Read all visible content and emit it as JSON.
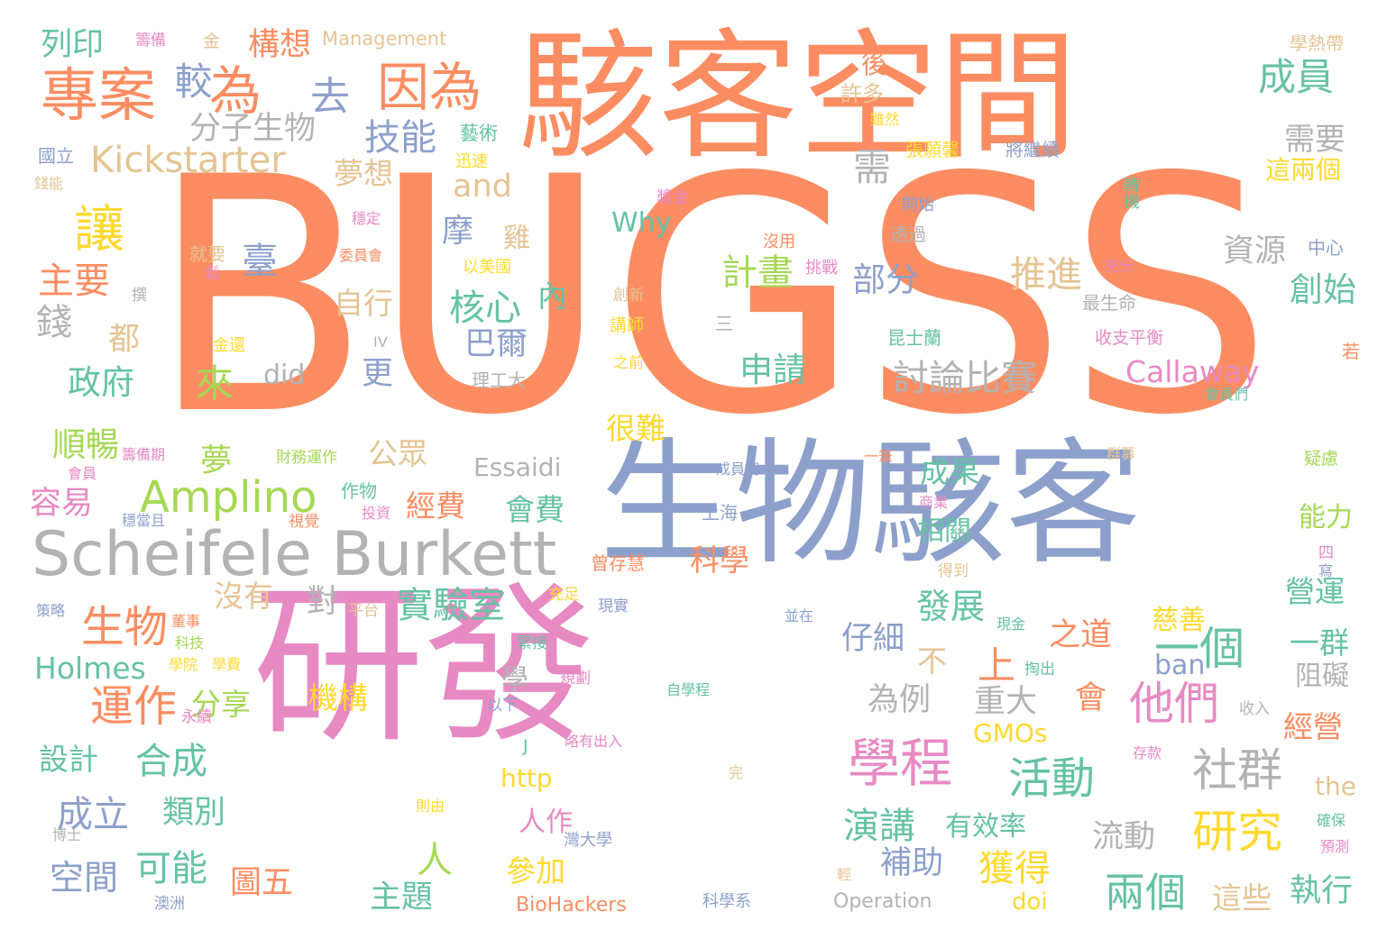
{
  "palette": {
    "orange": "#fc8d62",
    "blue": "#8da0cb",
    "pink": "#e78ac3",
    "green": "#66c2a5",
    "lime": "#a6d854",
    "yellow": "#ffd92f",
    "tan": "#e5c494",
    "gray": "#b3b3b3",
    "background": "#ffffff"
  },
  "words": [
    {
      "text": "BUGSS",
      "color": "orange"
    },
    {
      "text": "研發",
      "color": "pink"
    },
    {
      "text": "駭客空間",
      "color": "orange"
    },
    {
      "text": "生物駭客",
      "color": "blue"
    },
    {
      "text": "Scheifele Burkett",
      "color": "gray"
    },
    {
      "text": "專案",
      "color": "orange"
    },
    {
      "text": "為",
      "color": "orange"
    },
    {
      "text": "因為",
      "color": "orange"
    },
    {
      "text": "去",
      "color": "blue"
    },
    {
      "text": "較",
      "color": "blue"
    },
    {
      "text": "構想",
      "color": "orange"
    },
    {
      "text": "Management",
      "color": "tan"
    },
    {
      "text": "列印",
      "color": "green"
    },
    {
      "text": "籌備",
      "color": "pink"
    },
    {
      "text": "金",
      "color": "tan"
    },
    {
      "text": "分子生物",
      "color": "gray"
    },
    {
      "text": "技能",
      "color": "blue"
    },
    {
      "text": "Kickstarter",
      "color": "tan"
    },
    {
      "text": "國立",
      "color": "blue"
    },
    {
      "text": "錢能",
      "color": "tan"
    },
    {
      "text": "藝術",
      "color": "green"
    },
    {
      "text": "迅速",
      "color": "yellow"
    },
    {
      "text": "夢想",
      "color": "tan"
    },
    {
      "text": "and",
      "color": "tan"
    },
    {
      "text": "需",
      "color": "gray"
    },
    {
      "text": "許多",
      "color": "tan"
    },
    {
      "text": "後",
      "color": "orange"
    },
    {
      "text": "雖然",
      "color": "yellow"
    },
    {
      "text": "張願馨",
      "color": "yellow"
    },
    {
      "text": "將繼續",
      "color": "blue"
    },
    {
      "text": "成員",
      "color": "green"
    },
    {
      "text": "需要",
      "color": "gray"
    },
    {
      "text": "這兩個",
      "color": "yellow"
    },
    {
      "text": "學熱帶",
      "color": "tan"
    },
    {
      "text": "轉機",
      "color": "green"
    },
    {
      "text": "讓",
      "color": "yellow"
    },
    {
      "text": "主要",
      "color": "orange"
    },
    {
      "text": "錢",
      "color": "gray"
    },
    {
      "text": "都",
      "color": "tan"
    },
    {
      "text": "政府",
      "color": "green"
    },
    {
      "text": "臺",
      "color": "blue"
    },
    {
      "text": "摩",
      "color": "blue"
    },
    {
      "text": "雞",
      "color": "tan"
    },
    {
      "text": "Why",
      "color": "green"
    },
    {
      "text": "獎金",
      "color": "pink"
    },
    {
      "text": "穩定",
      "color": "pink"
    },
    {
      "text": "就要",
      "color": "tan"
    },
    {
      "text": "鬆",
      "color": "pink"
    },
    {
      "text": "委員會",
      "color": "orange"
    },
    {
      "text": "以美國",
      "color": "yellow"
    },
    {
      "text": "撰",
      "color": "gray"
    },
    {
      "text": "自行",
      "color": "tan"
    },
    {
      "text": "核心",
      "color": "green"
    },
    {
      "text": "巴爾",
      "color": "blue"
    },
    {
      "text": "內",
      "color": "green"
    },
    {
      "text": "計畫",
      "color": "lime"
    },
    {
      "text": "部分",
      "color": "blue"
    },
    {
      "text": "推進",
      "color": "tan"
    },
    {
      "text": "資源",
      "color": "gray"
    },
    {
      "text": "創始",
      "color": "green"
    },
    {
      "text": "中心",
      "color": "blue"
    },
    {
      "text": "開始",
      "color": "blue"
    },
    {
      "text": "透過",
      "color": "gray"
    },
    {
      "text": "沒用",
      "color": "orange"
    },
    {
      "text": "挑戰",
      "color": "pink"
    },
    {
      "text": "充分",
      "color": "pink"
    },
    {
      "text": "最生命",
      "color": "gray"
    },
    {
      "text": "創新",
      "color": "tan"
    },
    {
      "text": "講師",
      "color": "yellow"
    },
    {
      "text": "三",
      "color": "gray"
    },
    {
      "text": "之前",
      "color": "yellow"
    },
    {
      "text": "金還",
      "color": "yellow"
    },
    {
      "text": "IV",
      "color": "gray"
    },
    {
      "text": "昆士蘭",
      "color": "green"
    },
    {
      "text": "收支平衡",
      "color": "pink"
    },
    {
      "text": "若",
      "color": "orange"
    },
    {
      "text": "來",
      "color": "lime"
    },
    {
      "text": "did",
      "color": "gray"
    },
    {
      "text": "更",
      "color": "blue"
    },
    {
      "text": "理工大",
      "color": "gray"
    },
    {
      "text": "申請",
      "color": "green"
    },
    {
      "text": "討論比賽",
      "color": "gray"
    },
    {
      "text": "Callaway",
      "color": "pink"
    },
    {
      "text": "會員們",
      "color": "green"
    },
    {
      "text": "順暢",
      "color": "lime"
    },
    {
      "text": "籌備期",
      "color": "pink"
    },
    {
      "text": "會員",
      "color": "pink"
    },
    {
      "text": "容易",
      "color": "pink"
    },
    {
      "text": "夢",
      "color": "lime"
    },
    {
      "text": "財務運作",
      "color": "lime"
    },
    {
      "text": "公眾",
      "color": "tan"
    },
    {
      "text": "Essaidi",
      "color": "gray"
    },
    {
      "text": "很難",
      "color": "yellow"
    },
    {
      "text": "成員們",
      "color": "blue"
    },
    {
      "text": "一筆",
      "color": "orange"
    },
    {
      "text": "群募",
      "color": "tan"
    },
    {
      "text": "疑慮",
      "color": "lime"
    },
    {
      "text": "Amplino",
      "color": "lime"
    },
    {
      "text": "經費",
      "color": "orange"
    },
    {
      "text": "會費",
      "color": "green"
    },
    {
      "text": "成果",
      "color": "green"
    },
    {
      "text": "作物",
      "color": "green"
    },
    {
      "text": "穩當且",
      "color": "blue"
    },
    {
      "text": "視覺",
      "color": "orange"
    },
    {
      "text": "投資",
      "color": "pink"
    },
    {
      "text": "上海",
      "color": "blue"
    },
    {
      "text": "商業",
      "color": "pink"
    },
    {
      "text": "能力",
      "color": "lime"
    },
    {
      "text": "相關",
      "color": "green"
    },
    {
      "text": "曾存慧",
      "color": "orange"
    },
    {
      "text": "科學",
      "color": "orange"
    },
    {
      "text": "得到",
      "color": "tan"
    },
    {
      "text": "四",
      "color": "pink"
    },
    {
      "text": "寫",
      "color": "blue"
    },
    {
      "text": "營運",
      "color": "green"
    },
    {
      "text": "生物",
      "color": "orange"
    },
    {
      "text": "沒有",
      "color": "tan"
    },
    {
      "text": "對",
      "color": "gray"
    },
    {
      "text": "實驗室",
      "color": "green"
    },
    {
      "text": "平台",
      "color": "tan"
    },
    {
      "text": "充足",
      "color": "yellow"
    },
    {
      "text": "現實",
      "color": "blue"
    },
    {
      "text": "策略",
      "color": "blue"
    },
    {
      "text": "董事",
      "color": "orange"
    },
    {
      "text": "科技",
      "color": "lime"
    },
    {
      "text": "發展",
      "color": "green"
    },
    {
      "text": "並在",
      "color": "blue"
    },
    {
      "text": "現金",
      "color": "green"
    },
    {
      "text": "慈善",
      "color": "yellow"
    },
    {
      "text": "一個",
      "color": "green"
    },
    {
      "text": "一群",
      "color": "green"
    },
    {
      "text": "仔細",
      "color": "blue"
    },
    {
      "text": "之道",
      "color": "orange"
    },
    {
      "text": "上",
      "color": "orange"
    },
    {
      "text": "不",
      "color": "tan"
    },
    {
      "text": "Holmes",
      "color": "green"
    },
    {
      "text": "學院",
      "color": "yellow"
    },
    {
      "text": "學費",
      "color": "yellow"
    },
    {
      "text": "緊接",
      "color": "green"
    },
    {
      "text": "規劃",
      "color": "pink"
    },
    {
      "text": "學",
      "color": "gray"
    },
    {
      "text": "掏出",
      "color": "green"
    },
    {
      "text": "ban",
      "color": "blue"
    },
    {
      "text": "阻礙",
      "color": "gray"
    },
    {
      "text": "運作",
      "color": "orange"
    },
    {
      "text": "分享",
      "color": "lime"
    },
    {
      "text": "機構",
      "color": "yellow"
    },
    {
      "text": "為例",
      "color": "gray"
    },
    {
      "text": "重大",
      "color": "gray"
    },
    {
      "text": "會",
      "color": "orange"
    },
    {
      "text": "他們",
      "color": "pink"
    },
    {
      "text": "永續",
      "color": "pink"
    },
    {
      "text": "以下",
      "color": "blue"
    },
    {
      "text": "自學程",
      "color": "green"
    },
    {
      "text": "收入",
      "color": "gray"
    },
    {
      "text": "經營",
      "color": "orange"
    },
    {
      "text": "設計",
      "color": "green"
    },
    {
      "text": "合成",
      "color": "green"
    },
    {
      "text": "J",
      "color": "green"
    },
    {
      "text": "略有出入",
      "color": "pink"
    },
    {
      "text": "GMOs",
      "color": "yellow"
    },
    {
      "text": "學程",
      "color": "pink"
    },
    {
      "text": "存款",
      "color": "pink"
    },
    {
      "text": "完",
      "color": "tan"
    },
    {
      "text": "http",
      "color": "yellow"
    },
    {
      "text": "活動",
      "color": "green"
    },
    {
      "text": "社群",
      "color": "gray"
    },
    {
      "text": "the",
      "color": "tan"
    },
    {
      "text": "成立",
      "color": "blue"
    },
    {
      "text": "類別",
      "color": "green"
    },
    {
      "text": "則由",
      "color": "yellow"
    },
    {
      "text": "人作",
      "color": "pink"
    },
    {
      "text": "演講",
      "color": "green"
    },
    {
      "text": "有效率",
      "color": "green"
    },
    {
      "text": "研究",
      "color": "yellow"
    },
    {
      "text": "確保",
      "color": "green"
    },
    {
      "text": "博士",
      "color": "gray"
    },
    {
      "text": "灣大學",
      "color": "blue"
    },
    {
      "text": "流動",
      "color": "gray"
    },
    {
      "text": "預測",
      "color": "pink"
    },
    {
      "text": "空間",
      "color": "blue"
    },
    {
      "text": "可能",
      "color": "green"
    },
    {
      "text": "人",
      "color": "lime"
    },
    {
      "text": "補助",
      "color": "blue"
    },
    {
      "text": "獲得",
      "color": "yellow"
    },
    {
      "text": "兩個",
      "color": "green"
    },
    {
      "text": "圖五",
      "color": "orange"
    },
    {
      "text": "參加",
      "color": "yellow"
    },
    {
      "text": "輕",
      "color": "tan"
    },
    {
      "text": "這些",
      "color": "tan"
    },
    {
      "text": "執行",
      "color": "green"
    },
    {
      "text": "澳洲",
      "color": "blue"
    },
    {
      "text": "主題",
      "color": "green"
    },
    {
      "text": "BioHackers",
      "color": "orange"
    },
    {
      "text": "科學系",
      "color": "blue"
    },
    {
      "text": "Operation",
      "color": "gray"
    },
    {
      "text": "doi",
      "color": "yellow"
    }
  ]
}
